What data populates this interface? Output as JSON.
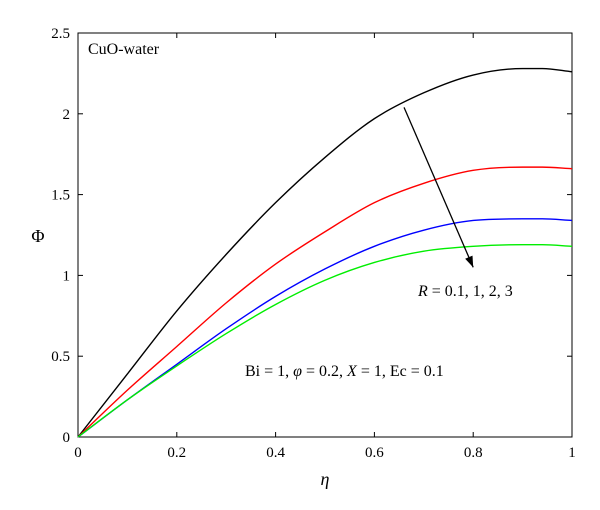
{
  "chart_data": {
    "type": "line",
    "xlabel": "η",
    "ylabel": "Φ",
    "xlim": [
      0,
      1
    ],
    "ylim": [
      0,
      2.5
    ],
    "xticks": [
      "0",
      "0.2",
      "0.4",
      "0.6",
      "0.8",
      "1"
    ],
    "yticks": [
      "0",
      "0.5",
      "1",
      "1.5",
      "2",
      "2.5"
    ],
    "grid": false,
    "x": [
      0,
      0.1,
      0.2,
      0.3,
      0.4,
      0.5,
      0.6,
      0.7,
      0.8,
      0.9,
      0.94,
      1.0
    ],
    "series": [
      {
        "color": "#000000",
        "values": [
          0,
          0.39,
          0.78,
          1.13,
          1.45,
          1.73,
          1.97,
          2.13,
          2.24,
          2.28,
          2.28,
          2.26
        ]
      },
      {
        "color": "#ff0000",
        "values": [
          0,
          0.29,
          0.56,
          0.83,
          1.07,
          1.27,
          1.45,
          1.57,
          1.65,
          1.67,
          1.67,
          1.66
        ]
      },
      {
        "color": "#0000ff",
        "values": [
          0,
          0.23,
          0.45,
          0.67,
          0.87,
          1.04,
          1.18,
          1.28,
          1.34,
          1.35,
          1.35,
          1.34
        ]
      },
      {
        "color": "#00ee00",
        "values": [
          0,
          0.23,
          0.44,
          0.64,
          0.82,
          0.97,
          1.08,
          1.15,
          1.18,
          1.19,
          1.19,
          1.18
        ]
      }
    ],
    "annotations": {
      "corner_label": "CuO-water",
      "trend_label": {
        "var": "R",
        "text": " = 0.1, 1, 2, 3"
      },
      "params": {
        "parts": [
          {
            "t": "Bi = 1, ",
            "i": false
          },
          {
            "t": "φ",
            "i": true
          },
          {
            "t": " = 0.2, ",
            "i": false
          },
          {
            "t": "X",
            "i": true
          },
          {
            "t": " = 1, Ec = 0.1",
            "i": false
          }
        ]
      },
      "arrow": {
        "from": [
          0.66,
          2.04
        ],
        "to": [
          0.8,
          1.05
        ]
      }
    }
  }
}
